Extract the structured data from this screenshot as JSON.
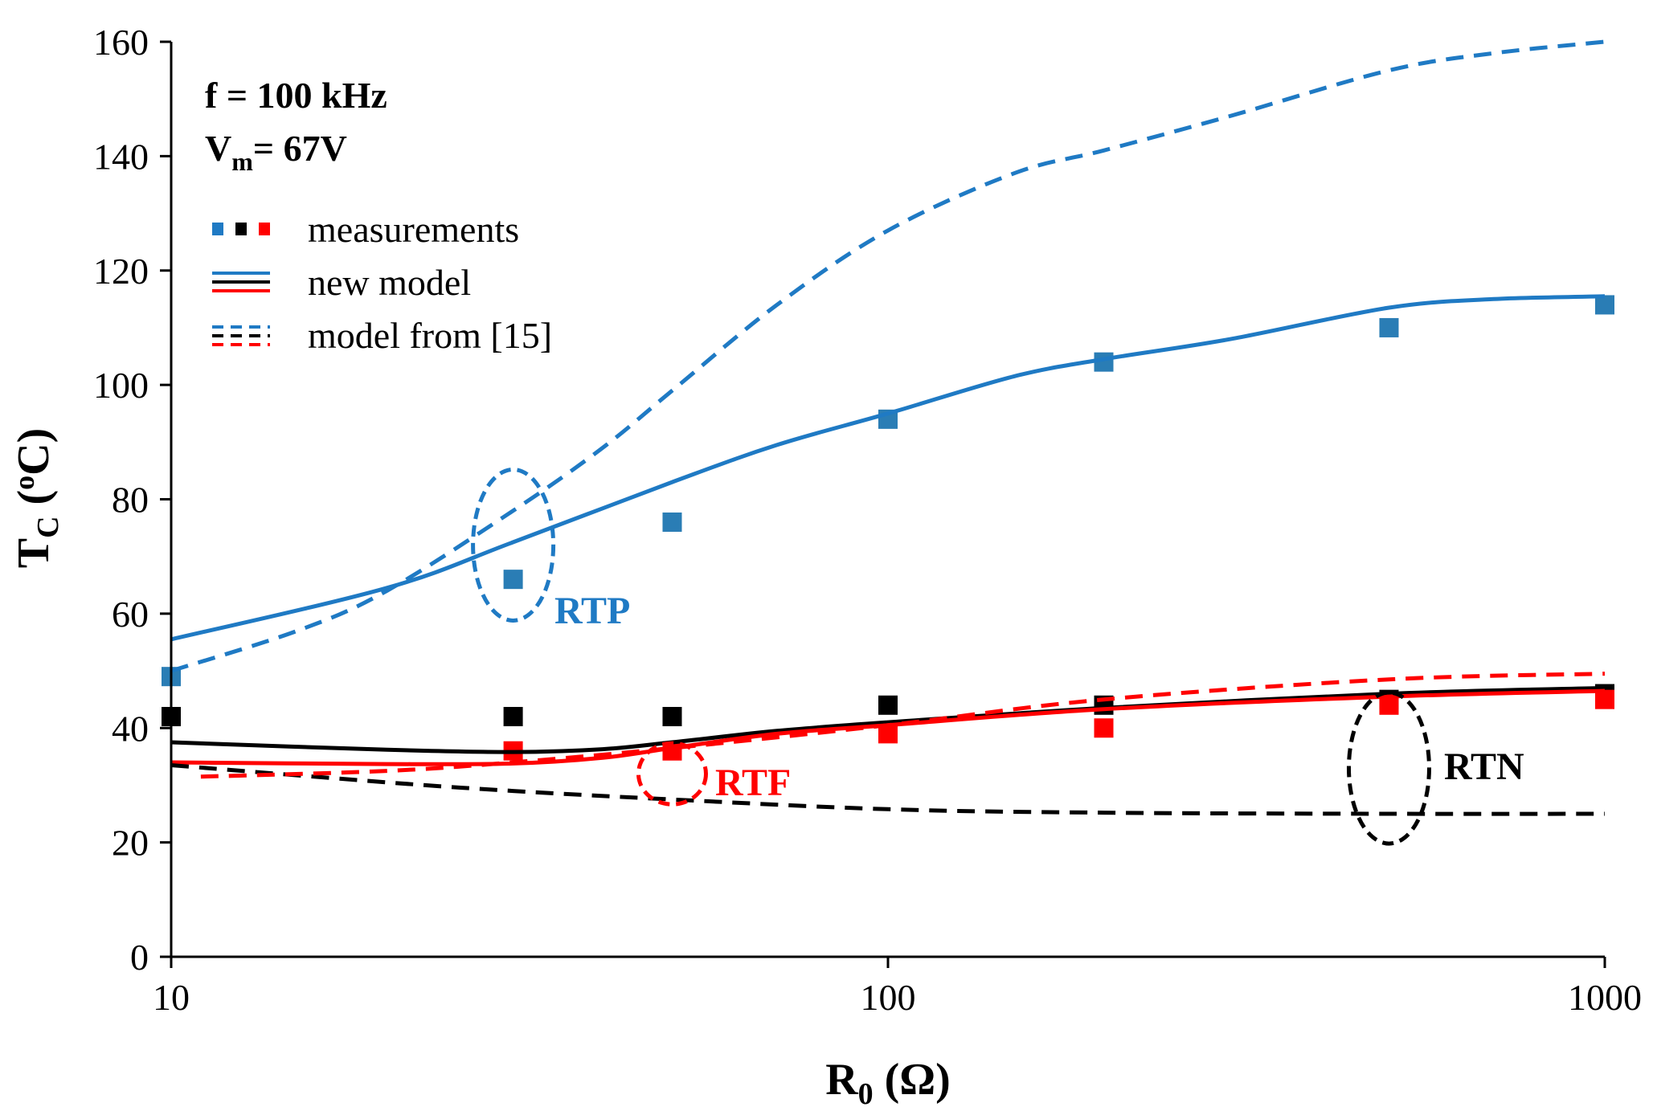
{
  "chart_data": {
    "type": "scatter",
    "title": "",
    "xlabel": {
      "main": "R",
      "sub": "0",
      "rest": " (Ω)"
    },
    "ylabel": {
      "main": "T",
      "sub": "C",
      "open": " (",
      "sup": "o",
      "close": "C)"
    },
    "xscale": "log",
    "xlim": [
      10,
      1000
    ],
    "ylim": [
      0,
      160
    ],
    "x_ticks": [
      10,
      100,
      1000
    ],
    "x_tick_labels": [
      "10",
      "100",
      "1000"
    ],
    "y_ticks": [
      0,
      20,
      40,
      60,
      80,
      100,
      120,
      140,
      160
    ],
    "y_tick_labels": [
      "0",
      "20",
      "40",
      "60",
      "80",
      "100",
      "120",
      "140",
      "160"
    ],
    "grid": false,
    "conditions": {
      "line1": "f = 100 kHz",
      "line2_main": "V",
      "line2_sub": "m",
      "line2_rest": "= 67V"
    },
    "legend": {
      "position": "top-left",
      "measurements": "measurements",
      "new_model": "new model",
      "old_model": "model from [15]"
    },
    "colors": {
      "RTP": "#1f7ac4",
      "RTP_marker": "#2a7db5",
      "RTF": "#ff0000",
      "RTN": "#000000"
    },
    "series": [
      {
        "name": "RTP",
        "kind": "measurements",
        "x": [
          10,
          30,
          50,
          100,
          200,
          500,
          1000
        ],
        "y": [
          49,
          66,
          76,
          94,
          104,
          110,
          114
        ]
      },
      {
        "name": "RTN",
        "kind": "measurements",
        "x": [
          10,
          30,
          50,
          100,
          200,
          500,
          1000
        ],
        "y": [
          42,
          42,
          42,
          44,
          44,
          45,
          46
        ]
      },
      {
        "name": "RTF",
        "kind": "measurements",
        "x": [
          30,
          50,
          100,
          200,
          500,
          1000
        ],
        "y": [
          36,
          36,
          39,
          40,
          44,
          45
        ]
      },
      {
        "name": "RTP",
        "kind": "new model",
        "x": [
          10,
          20,
          30,
          50,
          70,
          100,
          150,
          200,
          300,
          500,
          700,
          1000
        ],
        "y": [
          55.5,
          64.5,
          72.5,
          83,
          89.5,
          95,
          101.5,
          104.5,
          108,
          113.5,
          115,
          115.5
        ]
      },
      {
        "name": "RTN",
        "kind": "new model",
        "x": [
          10,
          20,
          30,
          40,
          50,
          70,
          100,
          200,
          500,
          1000
        ],
        "y": [
          37.5,
          36.2,
          35.8,
          36.3,
          37.5,
          39.5,
          41,
          43.5,
          46,
          47
        ]
      },
      {
        "name": "RTF",
        "kind": "new model",
        "x": [
          10,
          20,
          30,
          40,
          50,
          70,
          100,
          200,
          500,
          1000
        ],
        "y": [
          34,
          33.7,
          33.8,
          34.8,
          36.5,
          39,
          40.5,
          43.3,
          45.5,
          46.5
        ]
      },
      {
        "name": "RTP",
        "kind": "model from [15]",
        "x": [
          10,
          15,
          20,
          30,
          40,
          50,
          70,
          100,
          150,
          200,
          300,
          500,
          700,
          1000
        ],
        "y": [
          50,
          57,
          64,
          78,
          89,
          99,
          114,
          127,
          137,
          141,
          147,
          155,
          158,
          160
        ]
      },
      {
        "name": "RTN",
        "kind": "model from [15]",
        "x": [
          10,
          20,
          30,
          50,
          100,
          200,
          500,
          1000
        ],
        "y": [
          33.5,
          30.5,
          29,
          27.5,
          25.8,
          25.2,
          25,
          25
        ]
      },
      {
        "name": "RTF",
        "kind": "model from [15]",
        "x": [
          11,
          20,
          30,
          50,
          100,
          200,
          500,
          1000
        ],
        "y": [
          31.5,
          32.5,
          34,
          36.5,
          40.5,
          45,
          48.5,
          49.5
        ]
      }
    ],
    "annotations": [
      {
        "label": "RTP",
        "series": "RTP",
        "x": 30,
        "y": 72
      },
      {
        "label": "RTF",
        "series": "RTF",
        "x": 50,
        "y": 32
      },
      {
        "label": "RTN",
        "series": "RTN",
        "x": 500,
        "y": 33
      }
    ]
  }
}
